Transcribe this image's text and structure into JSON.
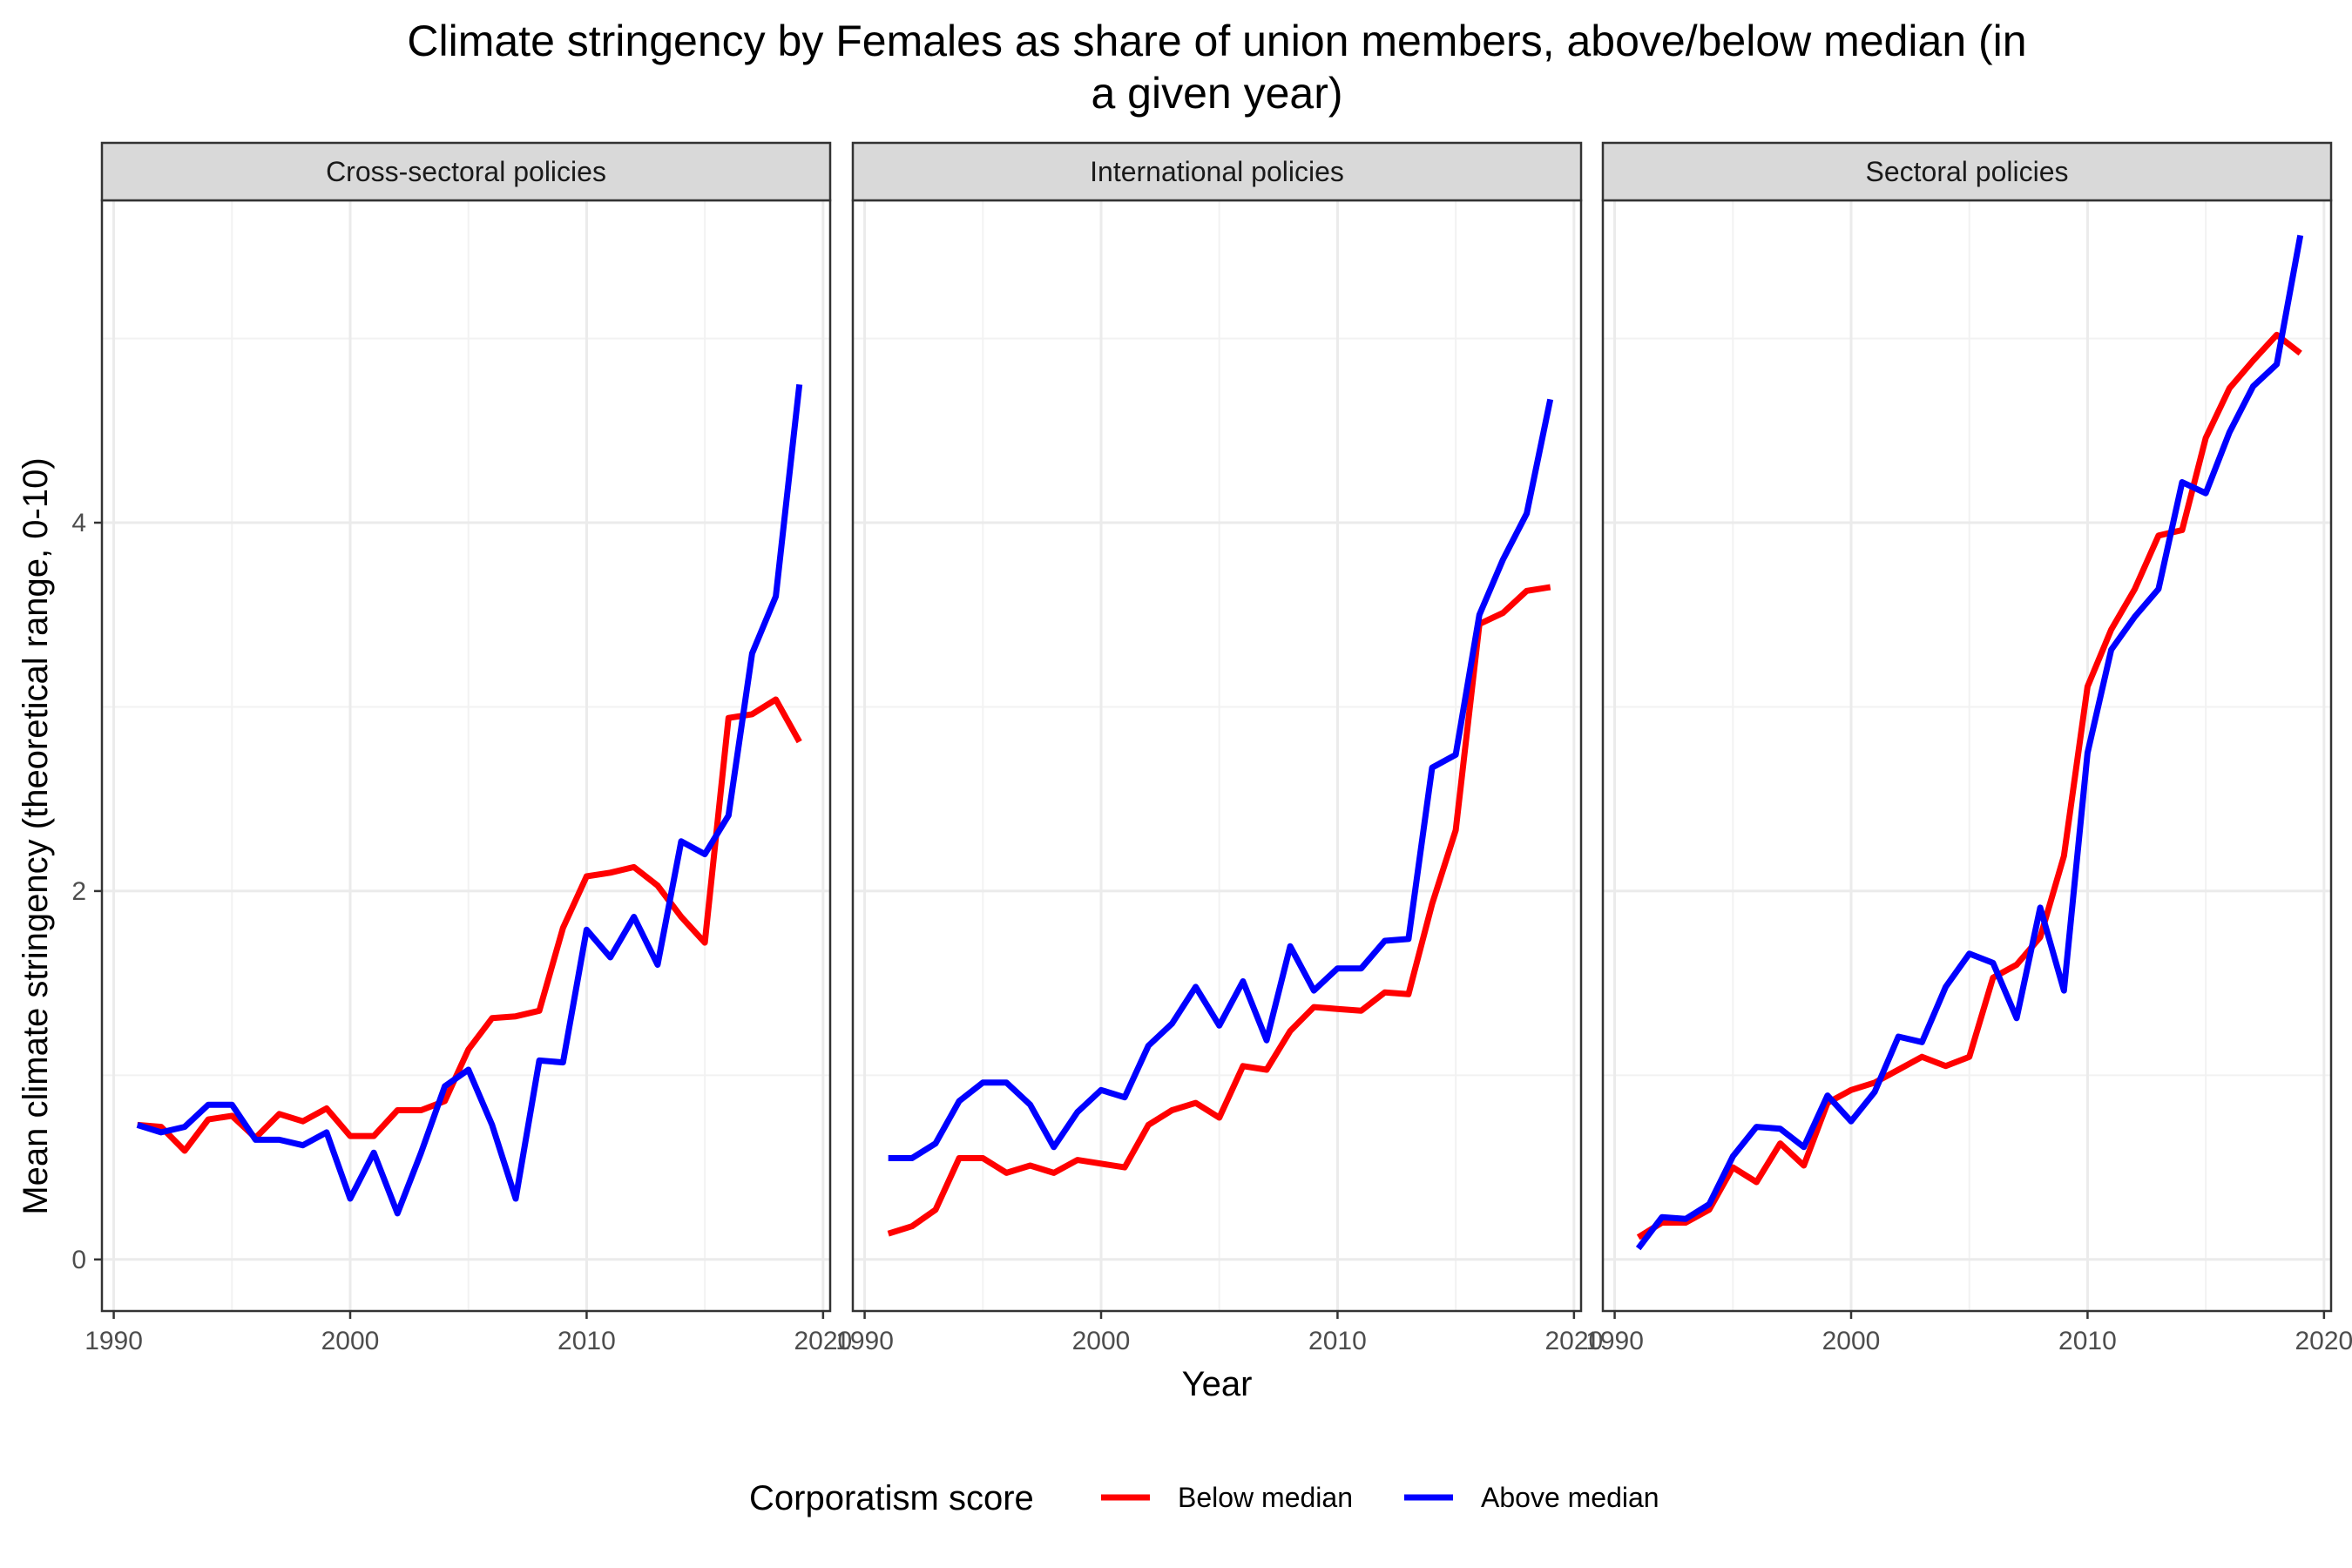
{
  "chart_data": {
    "type": "line",
    "title_line1": "Climate stringency by Females as share of union members, above/below median (in",
    "title_line2": "a given year)",
    "xlabel": "Year",
    "ylabel": "Mean climate stringency (theoretical range, 0-10)",
    "xlim": [
      1989.5,
      2020.3
    ],
    "ylim": [
      -0.28,
      5.75
    ],
    "x_ticks": [
      1990,
      2000,
      2010,
      2020
    ],
    "x_tick_labels": [
      "1990",
      "2000",
      "2010",
      "2020"
    ],
    "y_ticks": [
      0,
      2,
      4
    ],
    "y_tick_labels": [
      "0",
      "2",
      "4"
    ],
    "grid": true,
    "legend": {
      "title": "Corporatism score",
      "position": "bottom",
      "entries": [
        "Below median",
        "Above median"
      ]
    },
    "series_colors": {
      "below": "#ff0000",
      "above": "#0000ff"
    },
    "panels": [
      {
        "strip": "Cross-sectoral policies",
        "x": [
          1991,
          1992,
          1993,
          1994,
          1995,
          1996,
          1997,
          1998,
          1999,
          2000,
          2001,
          2002,
          2003,
          2004,
          2005,
          2006,
          2007,
          2008,
          2009,
          2010,
          2011,
          2012,
          2013,
          2014,
          2015,
          2016,
          2017,
          2018,
          2019
        ],
        "below": [
          0.73,
          0.72,
          0.59,
          0.76,
          0.78,
          0.66,
          0.79,
          0.75,
          0.82,
          0.67,
          0.67,
          0.81,
          0.81,
          0.86,
          1.14,
          1.31,
          1.32,
          1.35,
          1.8,
          2.08,
          2.1,
          2.13,
          2.03,
          1.86,
          1.72,
          2.94,
          2.96,
          3.04,
          2.81
        ],
        "above": [
          0.73,
          0.69,
          0.72,
          0.84,
          0.84,
          0.65,
          0.65,
          0.62,
          0.69,
          0.33,
          0.58,
          0.25,
          0.58,
          0.94,
          1.03,
          0.73,
          0.33,
          1.08,
          1.07,
          1.79,
          1.64,
          1.86,
          1.6,
          2.27,
          2.2,
          2.41,
          3.29,
          3.6,
          4.75
        ]
      },
      {
        "strip": "International policies",
        "x": [
          1991,
          1992,
          1993,
          1994,
          1995,
          1996,
          1997,
          1998,
          1999,
          2000,
          2001,
          2002,
          2003,
          2004,
          2005,
          2006,
          2007,
          2008,
          2009,
          2010,
          2011,
          2012,
          2013,
          2014,
          2015,
          2016,
          2017,
          2018,
          2019
        ],
        "below": [
          0.14,
          0.18,
          0.27,
          0.55,
          0.55,
          0.47,
          0.51,
          0.47,
          0.54,
          0.52,
          0.5,
          0.73,
          0.81,
          0.85,
          0.77,
          1.05,
          1.03,
          1.24,
          1.37,
          1.36,
          1.35,
          1.45,
          1.44,
          1.93,
          2.33,
          3.45,
          3.51,
          3.63,
          3.65
        ],
        "above": [
          0.55,
          0.55,
          0.63,
          0.86,
          0.96,
          0.96,
          0.84,
          0.61,
          0.8,
          0.92,
          0.88,
          1.16,
          1.28,
          1.48,
          1.27,
          1.51,
          1.19,
          1.7,
          1.46,
          1.58,
          1.58,
          1.73,
          1.74,
          2.67,
          2.74,
          3.5,
          3.8,
          4.05,
          4.67
        ]
      },
      {
        "strip": "Sectoral policies",
        "x": [
          1991,
          1992,
          1993,
          1994,
          1995,
          1996,
          1997,
          1998,
          1999,
          2000,
          2001,
          2002,
          2003,
          2004,
          2005,
          2006,
          2007,
          2008,
          2009,
          2010,
          2011,
          2012,
          2013,
          2014,
          2015,
          2016,
          2017,
          2018,
          2019
        ],
        "below": [
          0.12,
          0.2,
          0.2,
          0.27,
          0.5,
          0.42,
          0.63,
          0.51,
          0.85,
          0.92,
          0.96,
          1.03,
          1.1,
          1.05,
          1.1,
          1.53,
          1.6,
          1.75,
          2.19,
          3.11,
          3.42,
          3.64,
          3.93,
          3.96,
          4.46,
          4.73,
          4.88,
          5.02,
          4.92
        ],
        "above": [
          0.06,
          0.23,
          0.22,
          0.3,
          0.56,
          0.72,
          0.71,
          0.61,
          0.89,
          0.75,
          0.91,
          1.21,
          1.18,
          1.48,
          1.66,
          1.61,
          1.31,
          1.91,
          1.46,
          2.75,
          3.31,
          3.49,
          3.64,
          4.22,
          4.16,
          4.49,
          4.74,
          4.86,
          5.56
        ]
      }
    ]
  }
}
